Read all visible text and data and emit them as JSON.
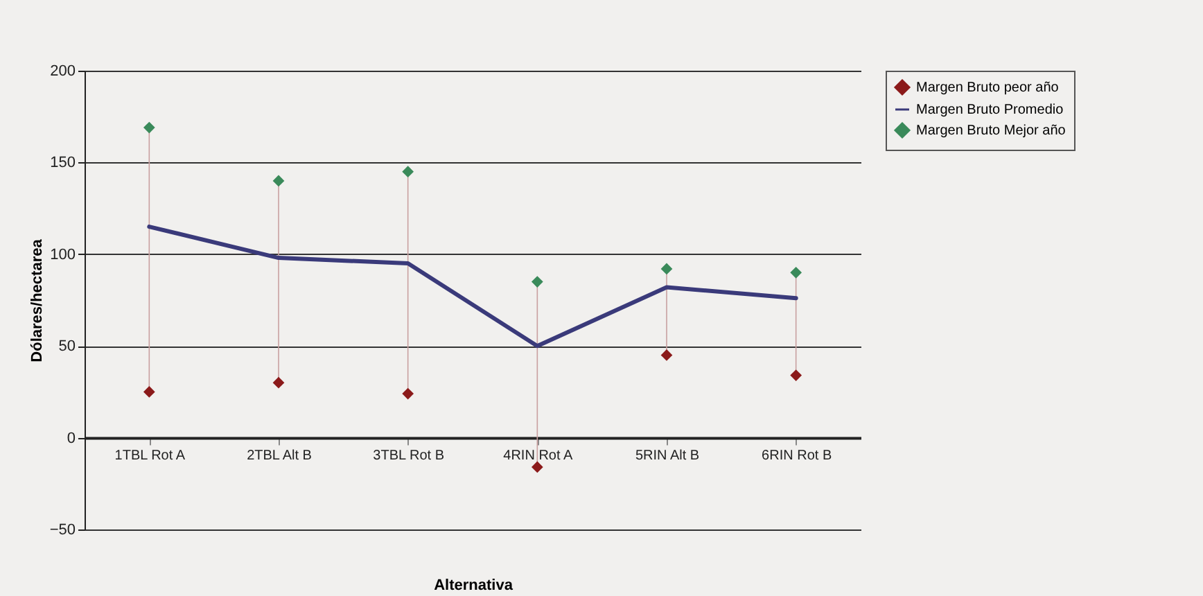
{
  "chart_data": {
    "type": "scatter",
    "xlabel": "Alternativa",
    "ylabel": "Dólares/hectarea",
    "categories": [
      "1TBL Rot A",
      "2TBL Alt B",
      "3TBL Rot B",
      "4RIN Rot A",
      "5RIN Alt B",
      "6RIN Rot B"
    ],
    "series": [
      {
        "name": "Margen Bruto peor año",
        "color": "#8b1a1a",
        "marker": "diamond",
        "values": [
          25,
          30,
          24,
          -16,
          45,
          34
        ]
      },
      {
        "name": "Margen Bruto Promedio",
        "type": "line",
        "color": "#3a3a7a",
        "marker": "none",
        "values": [
          115,
          98,
          95,
          50,
          82,
          76
        ]
      },
      {
        "name": "Margen Bruto Mejor año",
        "color": "#3a8a5a",
        "marker": "diamond",
        "values": [
          169,
          140,
          145,
          85,
          92,
          90
        ]
      }
    ],
    "ylim": [
      -50,
      200
    ],
    "yticks": [
      -50,
      0,
      50,
      100,
      150,
      200
    ],
    "grid": "y",
    "legend": "right"
  }
}
